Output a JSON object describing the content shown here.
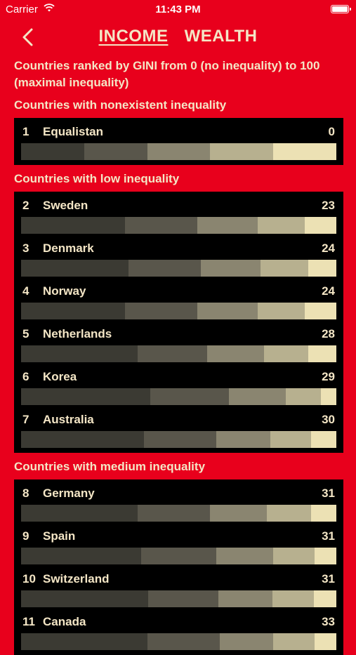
{
  "status": {
    "carrier": "Carrier",
    "time": "11:43 PM"
  },
  "nav": {
    "tabs": [
      "INCOME",
      "WEALTH"
    ],
    "active": 0
  },
  "intro": "Countries ranked by GINI from 0 (no inequality) to 100 (maximal inequality)",
  "sections": [
    {
      "title": "Countries with nonexistent inequality",
      "countries": [
        {
          "rank": "1",
          "name": "Equalistan",
          "gini": "0",
          "shares": [
            20,
            20,
            20,
            20,
            20
          ]
        }
      ]
    },
    {
      "title": "Countries with low inequality",
      "countries": [
        {
          "rank": "2",
          "name": "Sweden",
          "gini": "23",
          "shares": [
            33,
            23,
            19,
            15,
            10
          ]
        },
        {
          "rank": "3",
          "name": "Denmark",
          "gini": "24",
          "shares": [
            34,
            23,
            19,
            15,
            9
          ]
        },
        {
          "rank": "4",
          "name": "Norway",
          "gini": "24",
          "shares": [
            33,
            23,
            19,
            15,
            10
          ]
        },
        {
          "rank": "5",
          "name": "Netherlands",
          "gini": "28",
          "shares": [
            37,
            22,
            18,
            14,
            9
          ]
        },
        {
          "rank": "6",
          "name": "Korea",
          "gini": "29",
          "shares": [
            41,
            25,
            18,
            11,
            5
          ]
        },
        {
          "rank": "7",
          "name": "Australia",
          "gini": "30",
          "shares": [
            39,
            23,
            17,
            13,
            8
          ]
        }
      ]
    },
    {
      "title": "Countries with medium inequality",
      "countries": [
        {
          "rank": "8",
          "name": "Germany",
          "gini": "31",
          "shares": [
            37,
            23,
            18,
            14,
            8
          ]
        },
        {
          "rank": "9",
          "name": "Spain",
          "gini": "31",
          "shares": [
            38,
            24,
            18,
            13,
            7
          ]
        },
        {
          "rank": "10",
          "name": "Switzerland",
          "gini": "31",
          "shares": [
            40,
            22,
            17,
            13,
            7
          ]
        },
        {
          "rank": "11",
          "name": "Canada",
          "gini": "33",
          "shares": [
            40,
            23,
            17,
            13,
            7
          ]
        }
      ]
    }
  ]
}
